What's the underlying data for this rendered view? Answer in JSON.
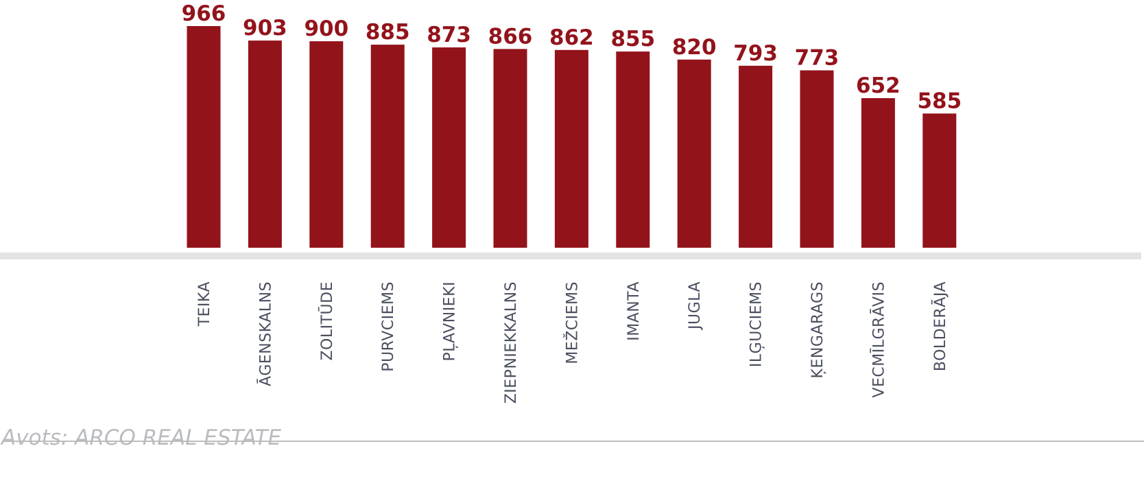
{
  "source_text": "Avots: ARCO REAL ESTATE",
  "chart_data": {
    "type": "bar",
    "categories": [
      "TEIKA",
      "ĀGENSKALNS",
      "ZOLITŪDE",
      "PURVCIEMS",
      "PĻAVNIEKI",
      "ZIEPNIEKKALNS",
      "MEŽCIEMS",
      "IMANTA",
      "JUGLA",
      "ILĢUCIEMS",
      "ĶENGARAGS",
      "VECMĪLGRĀVIS",
      "BOLDERĀJA"
    ],
    "values": [
      966,
      903,
      900,
      885,
      873,
      866,
      862,
      855,
      820,
      793,
      773,
      652,
      585
    ],
    "title": "",
    "xlabel": "",
    "ylabel": "",
    "ylim": [
      0,
      966
    ],
    "grid": false,
    "legend": "none",
    "colors": {
      "bar": "#93131b",
      "value_label": "#93131b",
      "category_label": "#4b5060",
      "baseline": "#e3e3e3",
      "divider": "#bdbdbd",
      "source": "#b9bcc0"
    }
  }
}
